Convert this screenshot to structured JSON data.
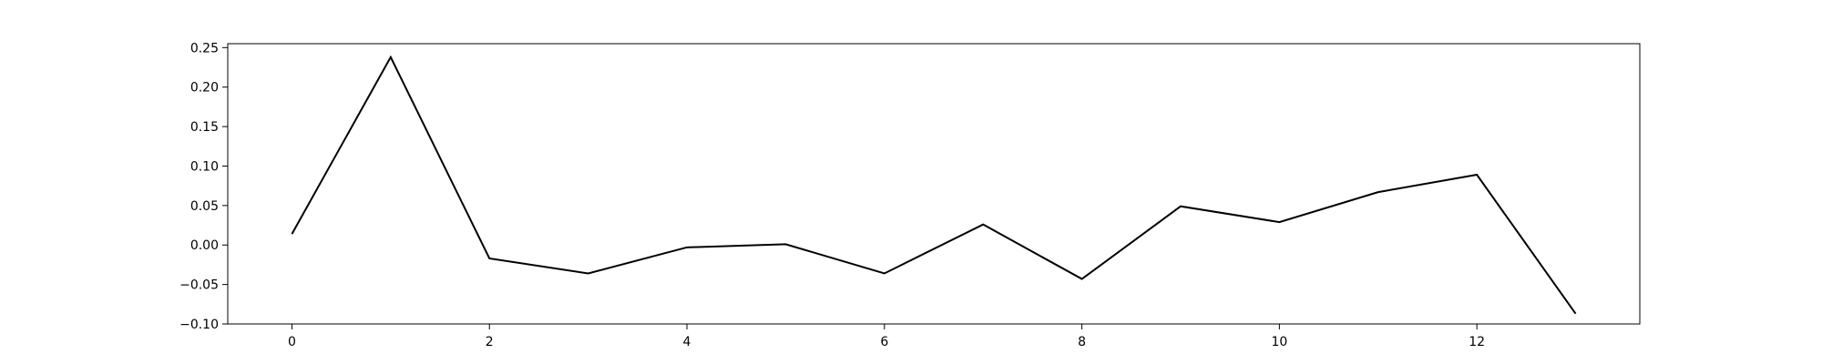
{
  "chart_data": {
    "type": "line",
    "title": "",
    "xlabel": "",
    "ylabel": "",
    "xlim": [
      -0.65,
      13.65
    ],
    "ylim": [
      -0.1,
      0.255
    ],
    "x_ticks": [
      0,
      2,
      4,
      6,
      8,
      10,
      12
    ],
    "x_tick_labels": [
      "0",
      "2",
      "4",
      "6",
      "8",
      "10",
      "12"
    ],
    "y_ticks": [
      -0.1,
      -0.05,
      0.0,
      0.05,
      0.1,
      0.15,
      0.2,
      0.25
    ],
    "y_tick_labels": [
      "−0.10",
      "−0.05",
      "0.00",
      "0.05",
      "0.10",
      "0.15",
      "0.20",
      "0.25"
    ],
    "grid": false,
    "legend": "none",
    "series": [
      {
        "color": "#000000",
        "x": [
          0,
          1,
          2,
          3,
          4,
          5,
          6,
          7,
          8,
          9,
          10,
          11,
          12,
          13
        ],
        "values": [
          0.014,
          0.238,
          -0.017,
          -0.036,
          -0.003,
          0.001,
          -0.036,
          0.026,
          -0.043,
          0.049,
          0.029,
          0.067,
          0.089,
          -0.087
        ]
      }
    ]
  }
}
